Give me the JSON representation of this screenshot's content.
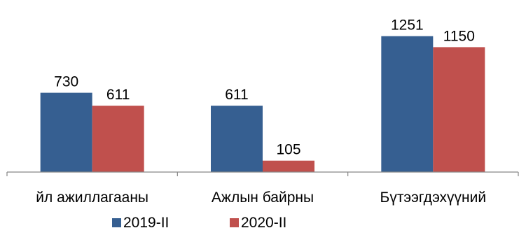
{
  "chart_data": {
    "type": "bar",
    "categories": [
      "йл ажиллагааны",
      "Ажлын байрны",
      "Бүтээгдэхүүний"
    ],
    "series": [
      {
        "name": "2019-II",
        "values": [
          730,
          611,
          1251
        ],
        "color": "#365f91"
      },
      {
        "name": "2020-II",
        "values": [
          611,
          105,
          1150
        ],
        "color": "#c0504d"
      }
    ],
    "legend_position": "bottom",
    "grid": false,
    "ylim": [
      0,
      1400
    ]
  }
}
